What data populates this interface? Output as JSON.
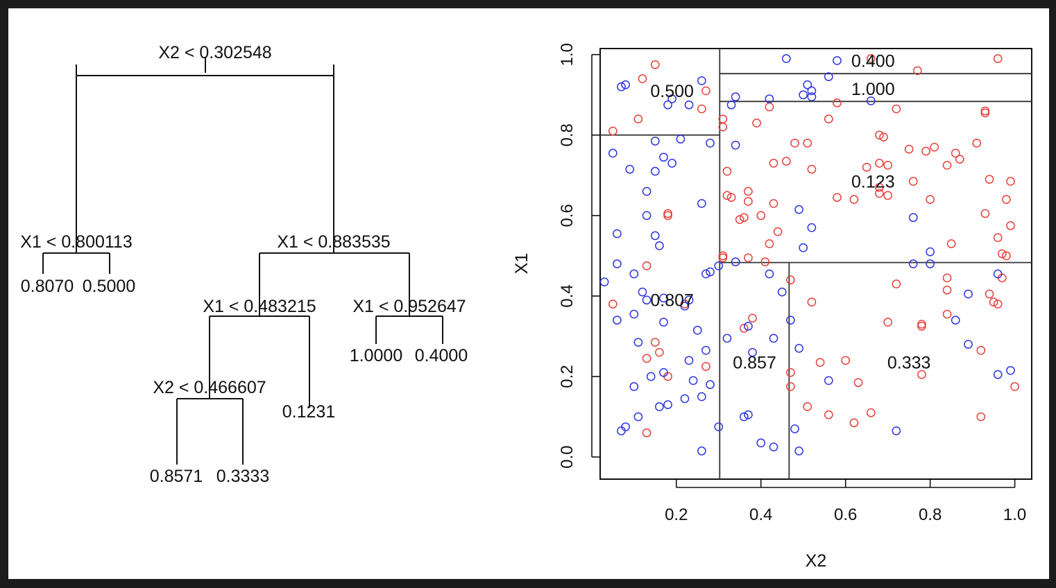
{
  "chart_data": [
    {
      "type": "tree",
      "tree": {
        "split": "X2 < 0.302548",
        "left": {
          "split": "X1 < 0.800113",
          "left": {
            "value": "0.8070"
          },
          "right": {
            "value": "0.5000"
          }
        },
        "right": {
          "split": "X1 < 0.883535",
          "left": {
            "split": "X1 < 0.483215",
            "left": {
              "split": "X2 < 0.466607",
              "left": {
                "value": "0.8571"
              },
              "right": {
                "value": "0.3333"
              }
            },
            "right": {
              "value": "0.1231"
            }
          },
          "right": {
            "split": "X1 < 0.952647",
            "left": {
              "value": "1.0000"
            },
            "right": {
              "value": "0.4000"
            }
          }
        }
      }
    },
    {
      "type": "scatter",
      "xlabel": "X2",
      "ylabel": "X1",
      "xlim": [
        0.02,
        1.04
      ],
      "ylim": [
        -0.055,
        1.015
      ],
      "xticks": [
        "0.2",
        "0.4",
        "0.6",
        "0.8",
        "1.0"
      ],
      "yticks": [
        "0.0",
        "0.2",
        "0.4",
        "0.6",
        "0.8",
        "1.0"
      ],
      "colors": {
        "red": "#e8413b",
        "blue": "#2d36e0"
      },
      "partition_lines": [
        {
          "x": [
            0.302548,
            0.302548
          ],
          "y": [
            -0.055,
            1.015
          ]
        },
        {
          "x": [
            0.02,
            0.302548
          ],
          "y": [
            0.800113,
            0.800113
          ]
        },
        {
          "x": [
            0.302548,
            1.04
          ],
          "y": [
            0.483215,
            0.483215
          ]
        },
        {
          "x": [
            0.302548,
            1.04
          ],
          "y": [
            0.883535,
            0.883535
          ]
        },
        {
          "x": [
            0.302548,
            1.04
          ],
          "y": [
            0.952647,
            0.952647
          ]
        },
        {
          "x": [
            0.466607,
            0.466607
          ],
          "y": [
            -0.055,
            0.483215
          ]
        }
      ],
      "region_labels": [
        {
          "text": "0.500",
          "x": 0.19,
          "y": 0.91
        },
        {
          "text": "0.807",
          "x": 0.19,
          "y": 0.39
        },
        {
          "text": "0.400",
          "x": 0.665,
          "y": 0.985
        },
        {
          "text": "1.000",
          "x": 0.665,
          "y": 0.915
        },
        {
          "text": "0.123",
          "x": 0.665,
          "y": 0.685
        },
        {
          "text": "0.857",
          "x": 0.385,
          "y": 0.235
        },
        {
          "text": "0.333",
          "x": 0.75,
          "y": 0.235
        }
      ],
      "series": [
        {
          "color": "red",
          "points": [
            [
              0.12,
              0.94
            ],
            [
              0.15,
              0.975
            ],
            [
              0.27,
              0.91
            ],
            [
              0.26,
              0.865
            ],
            [
              0.11,
              0.84
            ],
            [
              0.05,
              0.81
            ],
            [
              0.31,
              0.82
            ],
            [
              0.31,
              0.84
            ],
            [
              0.42,
              0.87
            ],
            [
              0.39,
              0.83
            ],
            [
              0.58,
              0.88
            ],
            [
              0.56,
              0.84
            ],
            [
              0.66,
              0.99
            ],
            [
              0.77,
              0.96
            ],
            [
              0.96,
              0.99
            ],
            [
              0.72,
              0.865
            ],
            [
              0.93,
              0.86
            ],
            [
              0.93,
              0.855
            ],
            [
              0.48,
              0.78
            ],
            [
              0.51,
              0.78
            ],
            [
              0.68,
              0.8
            ],
            [
              0.69,
              0.795
            ],
            [
              0.75,
              0.765
            ],
            [
              0.79,
              0.76
            ],
            [
              0.81,
              0.77
            ],
            [
              0.86,
              0.755
            ],
            [
              0.87,
              0.74
            ],
            [
              0.91,
              0.78
            ],
            [
              0.43,
              0.73
            ],
            [
              0.46,
              0.735
            ],
            [
              0.52,
              0.715
            ],
            [
              0.32,
              0.71
            ],
            [
              0.65,
              0.72
            ],
            [
              0.68,
              0.73
            ],
            [
              0.7,
              0.725
            ],
            [
              0.84,
              0.725
            ],
            [
              0.94,
              0.69
            ],
            [
              0.99,
              0.685
            ],
            [
              0.76,
              0.685
            ],
            [
              0.68,
              0.67
            ],
            [
              0.32,
              0.65
            ],
            [
              0.33,
              0.645
            ],
            [
              0.37,
              0.66
            ],
            [
              0.37,
              0.635
            ],
            [
              0.43,
              0.63
            ],
            [
              0.58,
              0.645
            ],
            [
              0.62,
              0.64
            ],
            [
              0.68,
              0.655
            ],
            [
              0.7,
              0.65
            ],
            [
              0.8,
              0.64
            ],
            [
              0.98,
              0.64
            ],
            [
              0.99,
              0.575
            ],
            [
              0.93,
              0.605
            ],
            [
              0.96,
              0.545
            ],
            [
              0.35,
              0.59
            ],
            [
              0.36,
              0.595
            ],
            [
              0.4,
              0.6
            ],
            [
              0.44,
              0.56
            ],
            [
              0.42,
              0.53
            ],
            [
              0.85,
              0.53
            ],
            [
              0.97,
              0.505
            ],
            [
              0.98,
              0.5
            ],
            [
              0.31,
              0.5
            ],
            [
              0.31,
              0.495
            ],
            [
              0.37,
              0.495
            ],
            [
              0.41,
              0.485
            ],
            [
              0.18,
              0.6
            ],
            [
              0.18,
              0.605
            ],
            [
              0.13,
              0.475
            ],
            [
              0.05,
              0.38
            ],
            [
              0.22,
              0.38
            ],
            [
              0.97,
              0.445
            ],
            [
              0.84,
              0.445
            ],
            [
              0.84,
              0.415
            ],
            [
              0.94,
              0.405
            ],
            [
              0.95,
              0.385
            ],
            [
              0.96,
              0.38
            ],
            [
              0.72,
              0.43
            ],
            [
              0.47,
              0.44
            ],
            [
              0.52,
              0.385
            ],
            [
              0.38,
              0.345
            ],
            [
              0.36,
              0.32
            ],
            [
              0.7,
              0.335
            ],
            [
              0.78,
              0.33
            ],
            [
              0.78,
              0.325
            ],
            [
              0.84,
              0.355
            ],
            [
              0.92,
              0.265
            ],
            [
              0.15,
              0.285
            ],
            [
              0.16,
              0.26
            ],
            [
              0.13,
              0.245
            ],
            [
              0.27,
              0.225
            ],
            [
              0.18,
              0.2
            ],
            [
              0.47,
              0.21
            ],
            [
              0.47,
              0.175
            ],
            [
              0.54,
              0.235
            ],
            [
              0.6,
              0.24
            ],
            [
              0.63,
              0.185
            ],
            [
              0.78,
              0.205
            ],
            [
              1.0,
              0.175
            ],
            [
              0.51,
              0.125
            ],
            [
              0.56,
              0.105
            ],
            [
              0.62,
              0.085
            ],
            [
              0.66,
              0.11
            ],
            [
              0.92,
              0.1
            ],
            [
              0.13,
              0.06
            ]
          ]
        },
        {
          "color": "blue",
          "points": [
            [
              0.07,
              0.92
            ],
            [
              0.08,
              0.925
            ],
            [
              0.18,
              0.875
            ],
            [
              0.19,
              0.89
            ],
            [
              0.23,
              0.875
            ],
            [
              0.26,
              0.935
            ],
            [
              0.46,
              0.99
            ],
            [
              0.58,
              0.985
            ],
            [
              0.56,
              0.945
            ],
            [
              0.51,
              0.925
            ],
            [
              0.52,
              0.91
            ],
            [
              0.5,
              0.9
            ],
            [
              0.52,
              0.895
            ],
            [
              0.33,
              0.875
            ],
            [
              0.34,
              0.895
            ],
            [
              0.42,
              0.89
            ],
            [
              0.66,
              0.885
            ],
            [
              0.15,
              0.785
            ],
            [
              0.21,
              0.79
            ],
            [
              0.28,
              0.78
            ],
            [
              0.34,
              0.775
            ],
            [
              0.05,
              0.755
            ],
            [
              0.09,
              0.715
            ],
            [
              0.15,
              0.71
            ],
            [
              0.17,
              0.745
            ],
            [
              0.19,
              0.73
            ],
            [
              0.13,
              0.66
            ],
            [
              0.26,
              0.63
            ],
            [
              0.13,
              0.6
            ],
            [
              0.15,
              0.55
            ],
            [
              0.06,
              0.555
            ],
            [
              0.16,
              0.525
            ],
            [
              0.49,
              0.615
            ],
            [
              0.52,
              0.57
            ],
            [
              0.76,
              0.595
            ],
            [
              0.5,
              0.52
            ],
            [
              0.8,
              0.51
            ],
            [
              0.8,
              0.48
            ],
            [
              0.76,
              0.48
            ],
            [
              0.34,
              0.485
            ],
            [
              0.06,
              0.48
            ],
            [
              0.3,
              0.475
            ],
            [
              0.1,
              0.455
            ],
            [
              0.27,
              0.455
            ],
            [
              0.28,
              0.46
            ],
            [
              0.42,
              0.455
            ],
            [
              0.45,
              0.41
            ],
            [
              0.03,
              0.435
            ],
            [
              0.12,
              0.41
            ],
            [
              0.13,
              0.39
            ],
            [
              0.17,
              0.395
            ],
            [
              0.23,
              0.39
            ],
            [
              0.22,
              0.375
            ],
            [
              0.06,
              0.34
            ],
            [
              0.1,
              0.355
            ],
            [
              0.17,
              0.335
            ],
            [
              0.25,
              0.315
            ],
            [
              0.32,
              0.295
            ],
            [
              0.37,
              0.325
            ],
            [
              0.43,
              0.295
            ],
            [
              0.47,
              0.34
            ],
            [
              0.49,
              0.27
            ],
            [
              0.38,
              0.26
            ],
            [
              0.27,
              0.265
            ],
            [
              0.89,
              0.405
            ],
            [
              0.86,
              0.34
            ],
            [
              0.89,
              0.28
            ],
            [
              0.96,
              0.455
            ],
            [
              0.11,
              0.285
            ],
            [
              0.23,
              0.24
            ],
            [
              0.14,
              0.2
            ],
            [
              0.17,
              0.21
            ],
            [
              0.24,
              0.19
            ],
            [
              0.28,
              0.18
            ],
            [
              0.1,
              0.175
            ],
            [
              0.26,
              0.15
            ],
            [
              0.22,
              0.145
            ],
            [
              0.18,
              0.13
            ],
            [
              0.16,
              0.125
            ],
            [
              0.11,
              0.1
            ],
            [
              0.08,
              0.075
            ],
            [
              0.07,
              0.065
            ],
            [
              0.3,
              0.075
            ],
            [
              0.36,
              0.1
            ],
            [
              0.37,
              0.105
            ],
            [
              0.48,
              0.07
            ],
            [
              0.4,
              0.035
            ],
            [
              0.43,
              0.025
            ],
            [
              0.26,
              0.015
            ],
            [
              0.49,
              0.015
            ],
            [
              0.56,
              0.19
            ],
            [
              0.72,
              0.065
            ],
            [
              0.96,
              0.205
            ],
            [
              0.99,
              0.215
            ]
          ]
        }
      ]
    }
  ]
}
